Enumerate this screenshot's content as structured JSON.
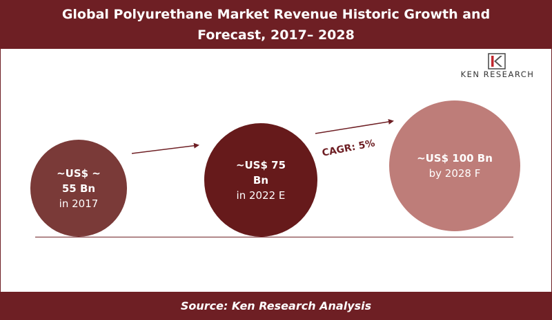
{
  "header": {
    "title": "Global Polyurethane Market Revenue Historic Growth and Forecast, 2017– 2028"
  },
  "logo": {
    "text": "KEN RESEARCH",
    "icon": "ken-research-logo-icon"
  },
  "chart_data": {
    "type": "bubble",
    "title": "Global Polyurethane Market Revenue Historic Growth and Forecast, 2017– 2028",
    "categories": [
      "2017",
      "2022 E",
      "2028 F"
    ],
    "values": [
      55,
      75,
      100
    ],
    "unit": "US$ Bn",
    "points": [
      {
        "value_label": "~US$ ~ 55 Bn",
        "value_line1": "~US$ ~",
        "value_line2": "55 Bn",
        "period_label": "in 2017",
        "value": 55,
        "color": "#7a3a38"
      },
      {
        "value_label": "~US$ 75 Bn",
        "value_line1": "~US$ 75",
        "value_line2": "Bn",
        "period_label": "in 2022 E",
        "value": 75,
        "color": "#661a1b"
      },
      {
        "value_label": "~US$ 100 Bn",
        "value_line1": "~US$ 100 Bn",
        "value_line2": "",
        "period_label": "by 2028 F",
        "value": 100,
        "color": "#be7d79"
      }
    ],
    "annotations": [
      "CAGR: 5%"
    ]
  },
  "footer": {
    "source": "Source: Ken Research Analysis"
  },
  "colors": {
    "brand": "#6e1f24",
    "logo_red": "#c0272d"
  }
}
